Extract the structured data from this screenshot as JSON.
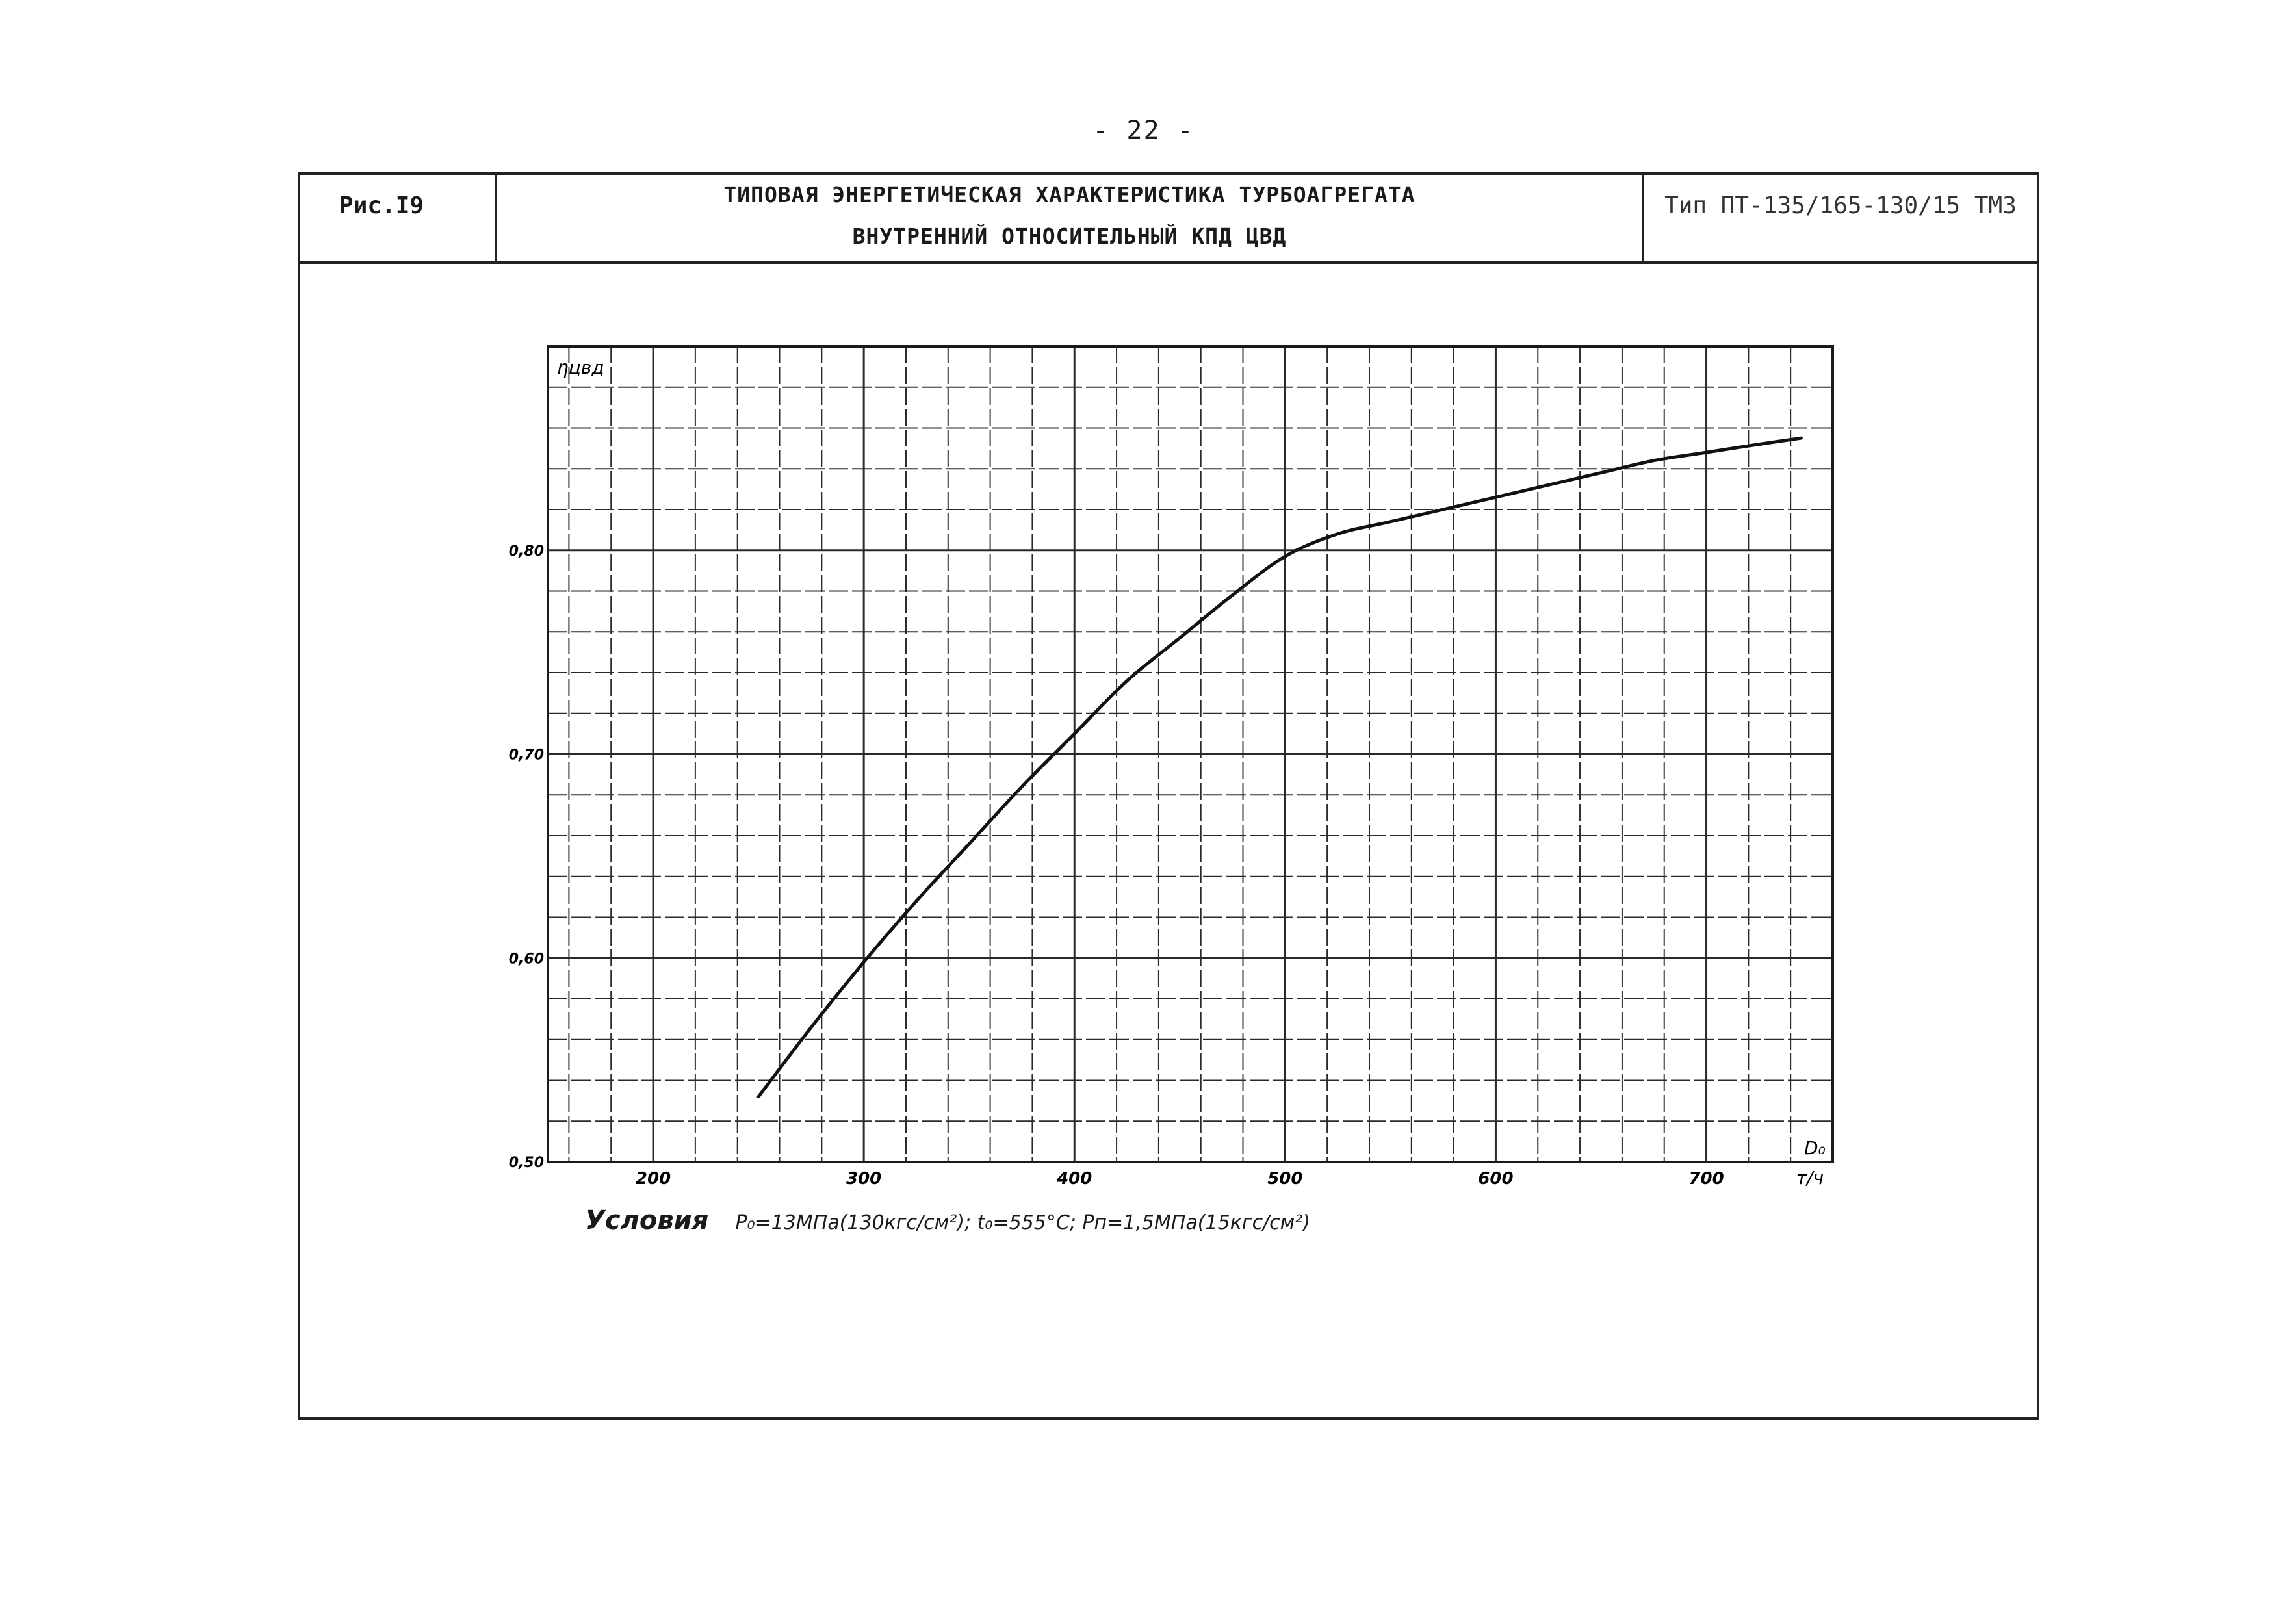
{
  "page_number": "- 22 -",
  "header": {
    "figure_label": "Рис.I9",
    "title_line1": "ТИПОВАЯ ЭНЕРГЕТИЧЕСКАЯ ХАРАКТЕРИСТИКА ТУРБОАГРЕГАТА",
    "title_line2": "ВНУТРЕННИЙ ОТНОСИТЕЛЬНЫЙ КПД ЦВД",
    "turbine_type": "Тип ПТ-135/165-130/15 ТМЗ"
  },
  "conditions": {
    "label": "Условия",
    "text": "P₀=13МПа(130кгс/см²); t₀=555°C; Pп=1,5МПа(15кгс/см²)"
  },
  "chart_data": {
    "type": "line",
    "title": "",
    "xlabel": "D₀",
    "xunit": "т/ч",
    "ylabel": "ηцвд",
    "xlim": [
      150,
      760
    ],
    "ylim": [
      0.5,
      0.9
    ],
    "x_ticks": [
      200,
      300,
      400,
      500,
      600,
      700
    ],
    "y_ticks": [
      0.5,
      0.6,
      0.7,
      0.8
    ],
    "x_tick_labels": [
      "200",
      "300",
      "400",
      "500",
      "600",
      "700"
    ],
    "y_tick_labels": [
      "0,50",
      "0,60",
      "0,70",
      "0,80"
    ],
    "grid": true,
    "series": [
      {
        "x": [
          250,
          275,
          300,
          325,
          350,
          375,
          400,
          425,
          450,
          475,
          500,
          525,
          550,
          575,
          600,
          625,
          650,
          675,
          700,
          725,
          745
        ],
        "y": [
          0.532,
          0.566,
          0.598,
          0.628,
          0.656,
          0.684,
          0.71,
          0.736,
          0.757,
          0.778,
          0.797,
          0.808,
          0.814,
          0.82,
          0.826,
          0.832,
          0.838,
          0.844,
          0.848,
          0.852,
          0.855
        ]
      }
    ]
  },
  "colors": {
    "ink": "#1a1a1a",
    "grid": "#2a2a2a",
    "paper": "#ffffff"
  }
}
